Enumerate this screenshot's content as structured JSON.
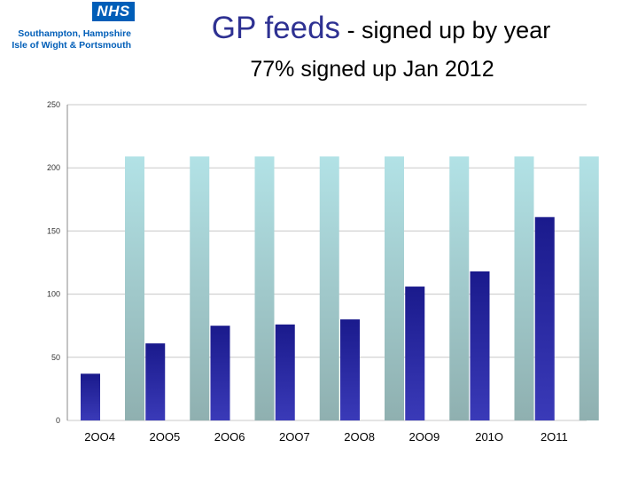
{
  "header": {
    "logo_badge": "NHS",
    "org_line1": "Southampton, Hampshire",
    "org_line2": "Isle of Wight & Portsmouth",
    "title_main": "GP feeds",
    "title_rest": " - signed up by year",
    "subtitle": "77% signed up Jan 2012"
  },
  "colors": {
    "signed_bar": "#1f1f8a",
    "total_bar": "#a9dde0",
    "gridline": "#c8c8c8"
  },
  "chart_data": {
    "type": "bar",
    "title": "GP feeds - signed up by year",
    "subtitle": "77% signed up Jan 2012",
    "categories": [
      "2OO4",
      "2OO5",
      "2OO6",
      "2OO7",
      "2OO8",
      "2OO9",
      "201O",
      "2O11"
    ],
    "series": [
      {
        "values": [
          37,
          61,
          75,
          76,
          80,
          106,
          118,
          161
        ]
      },
      {
        "values": [
          209,
          209,
          209,
          209,
          209,
          209,
          209,
          209
        ]
      }
    ],
    "yticks": [
      "0",
      "50",
      "100",
      "150",
      "200",
      "250"
    ],
    "ylim": [
      0,
      250
    ],
    "grid": true,
    "legend": "none"
  }
}
